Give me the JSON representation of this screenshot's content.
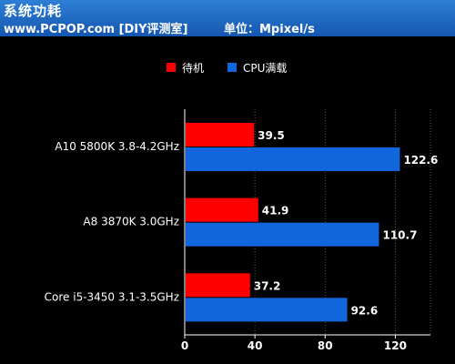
{
  "header": {
    "title": "系统功耗",
    "subtitle": "www.PCPOP.com [DIY评测室]",
    "unit": "单位：Mpixel/s"
  },
  "chart_data": {
    "type": "bar",
    "orientation": "horizontal",
    "categories": [
      "A10 5800K 3.8-4.2GHz",
      "A8 3870K 3.0GHz",
      "Core i5-3450 3.1-3.5GHz"
    ],
    "series": [
      {
        "name": "待机",
        "color": "#ff0000",
        "values": [
          39.5,
          41.9,
          37.2
        ]
      },
      {
        "name": "CPU满载",
        "color": "#1166dd",
        "values": [
          122.6,
          110.7,
          92.6
        ]
      }
    ],
    "xlim": [
      0,
      140
    ],
    "xticks": [
      0,
      40,
      80,
      120
    ],
    "grid": true,
    "legend": "top-center"
  }
}
